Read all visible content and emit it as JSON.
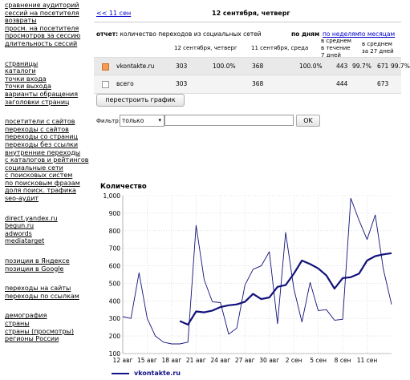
{
  "sidebar": {
    "groups": [
      [
        "сравнение аудиторий",
        "сессий на посетителя",
        "возвраты",
        "просм. на посетителя",
        "просмотров за сессию",
        "длительность сессий"
      ],
      [
        "страницы",
        "каталоги",
        "точки входа",
        "точки выхода",
        "варианты обращения",
        "заголовки страниц"
      ],
      [
        "посетители с сайтов",
        "переходы с сайтов",
        "переходы со страниц",
        "переходы без ссылки",
        "внутренние переходы",
        "с каталогов и рейтингов",
        "социальные сети",
        "с поисковых систем",
        "по поисковым фразам",
        "доля поиск. трафика",
        "seo-аудит"
      ],
      [
        "direct.yandex.ru",
        "begun.ru",
        "adwords",
        "mediatarget"
      ],
      [
        "позиции в Яндексе",
        "позиции в Google"
      ],
      [
        "переходы на сайты",
        "переходы по ссылкам"
      ],
      [
        "демография",
        "страны",
        "страны (просмотры)",
        "регионы России"
      ]
    ]
  },
  "nav": {
    "back": "<< 11 сен",
    "title": "12 сентября, четверг"
  },
  "report": {
    "label_bold": "отчет:",
    "label_text": " количество переходов из социальных сетей"
  },
  "period": {
    "day": "по дням",
    "week": "по неделям",
    "month": "по месяцам"
  },
  "table": {
    "headers": {
      "col1": "12 сентября, четверг",
      "col2": "11 сентября, среда",
      "avg_week": "в среднем\nв течение\n7 дней",
      "avg_month": "в среднем\nза 27 дней"
    },
    "rows": [
      {
        "name": "vkontakte.ru",
        "checked": true,
        "v1": "303",
        "p1": "100.0%",
        "v2": "368",
        "p2": "100.0%",
        "w": "443",
        "pw": "99.7%",
        "m": "671",
        "pm": "99.7%"
      },
      {
        "name": "всего",
        "checked": false,
        "v1": "303",
        "p1": "",
        "v2": "368",
        "p2": "",
        "w": "444",
        "pw": "",
        "m": "673",
        "pm": ""
      }
    ]
  },
  "rebuild_label": "перестроить график",
  "filter": {
    "label": "Фильтр:",
    "select_value": "только",
    "ok_label": "OK"
  },
  "chart_data": {
    "type": "line",
    "title": "Количество",
    "x_ticks": [
      "12 авг",
      "15 авг",
      "18 авг",
      "21 авг",
      "24 авг",
      "27 авг",
      "30 авг",
      "2 сен",
      "5 сен",
      "8 сен",
      "11 сен"
    ],
    "ylim": [
      100,
      1000
    ],
    "y_ticks": [
      100,
      200,
      300,
      400,
      500,
      600,
      700,
      800,
      900,
      1000
    ],
    "y_tick_labels": [
      "100",
      "200",
      "300",
      "400",
      "500",
      "600",
      "700",
      "800",
      "900",
      "1,000"
    ],
    "grid": true,
    "legend": "bottom-left",
    "series": [
      {
        "name": "vkontakte.ru",
        "role": "daily",
        "values": [
          310,
          300,
          560,
          300,
          200,
          165,
          155,
          155,
          165,
          830,
          520,
          395,
          390,
          210,
          245,
          490,
          580,
          600,
          680,
          270,
          790,
          470,
          280,
          505,
          345,
          350,
          290,
          295,
          985,
          860,
          750,
          890,
          580,
          380
        ]
      },
      {
        "name": "vkontakte.ru",
        "role": "average",
        "values": [
          null,
          null,
          null,
          null,
          null,
          null,
          null,
          285,
          265,
          340,
          335,
          345,
          365,
          375,
          380,
          395,
          440,
          410,
          420,
          480,
          490,
          555,
          630,
          610,
          585,
          545,
          470,
          530,
          535,
          555,
          630,
          655,
          665,
          672
        ]
      }
    ],
    "colors": {
      "line": "#11117a",
      "grid": "#cccccc"
    }
  }
}
